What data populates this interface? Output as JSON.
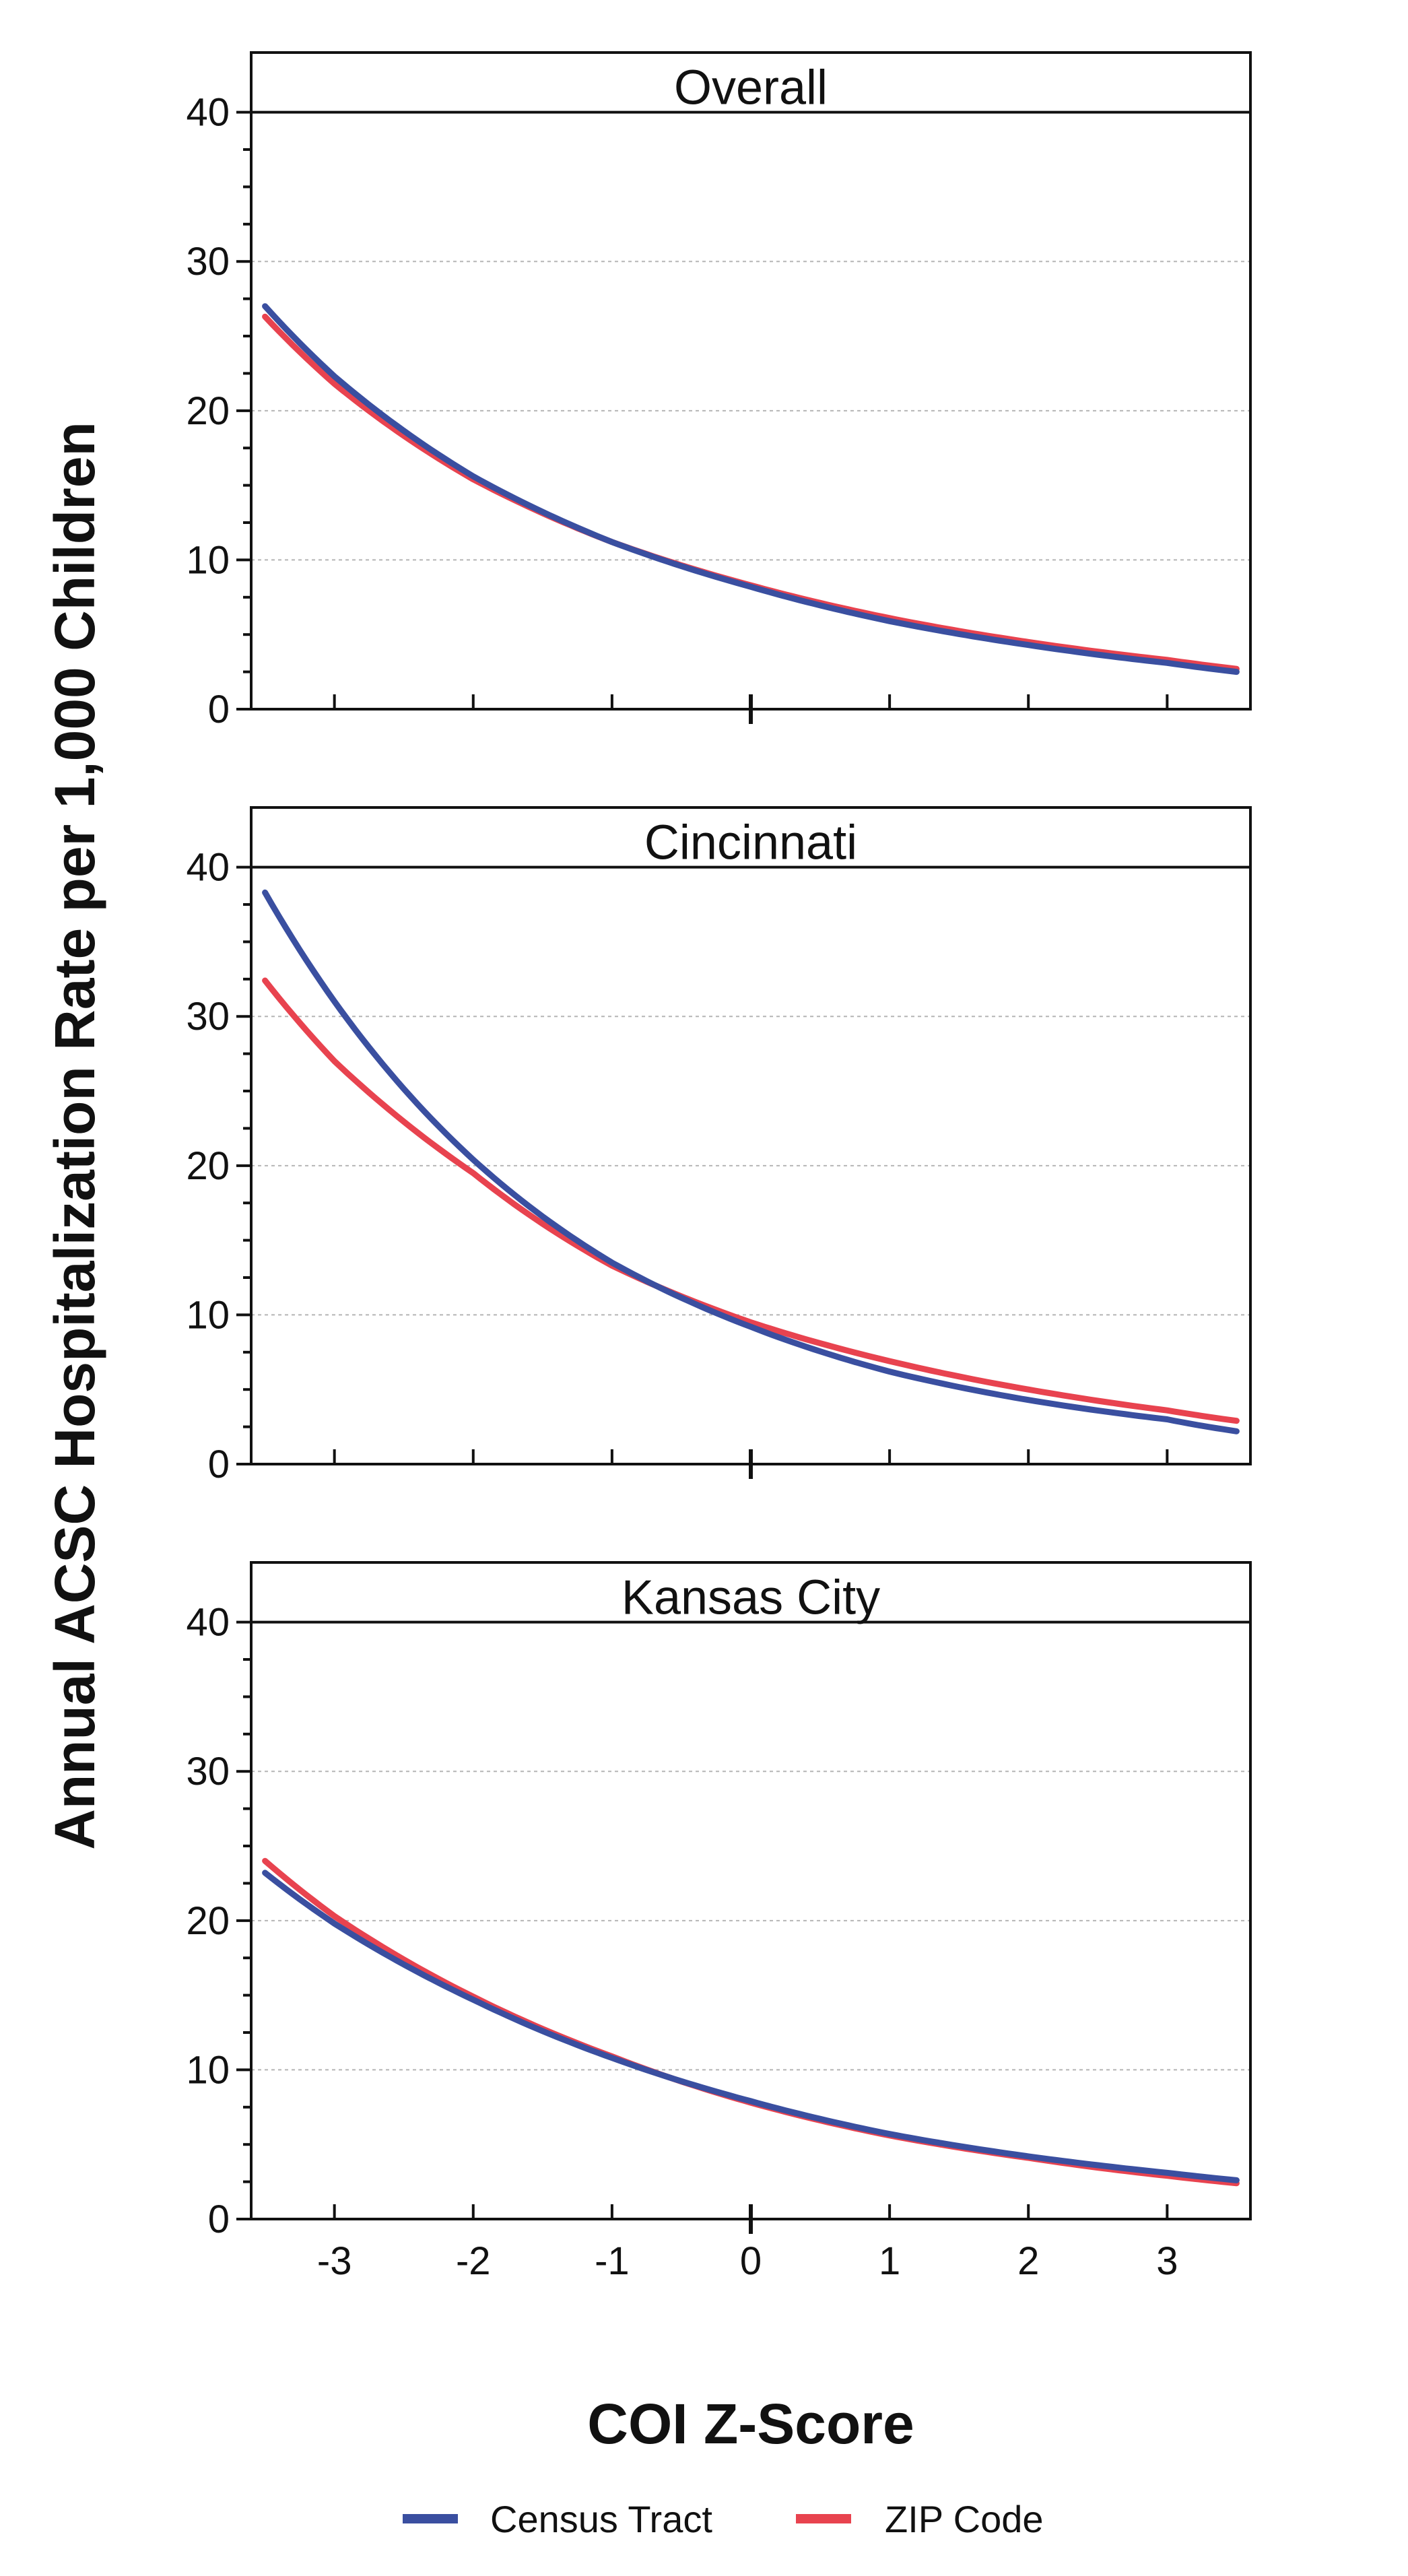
{
  "chart_data": {
    "type": "line",
    "ylabel": "Annual ACSC Hospitalization Rate per 1,000 Children",
    "xlabel": "COI Z-Score",
    "xlim": [
      -3.6,
      3.6
    ],
    "ylim": [
      0,
      44
    ],
    "x_ticks": [
      -3,
      -2,
      -1,
      0,
      1,
      2,
      3
    ],
    "x_tick_labels": [
      "-3",
      "-2",
      "-1",
      "0",
      "1",
      "2",
      "3"
    ],
    "y_ticks": [
      0,
      10,
      20,
      30,
      40
    ],
    "y_tick_labels": [
      "0",
      "10",
      "20",
      "30",
      "40"
    ],
    "grid": "horizontal dashed at 10, 20, 30",
    "legend_position": "bottom",
    "legend": [
      {
        "name": "Census Tract",
        "color": "#3a4fa0"
      },
      {
        "name": "ZIP Code",
        "color": "#e8434f"
      }
    ],
    "panels": [
      {
        "title": "Overall",
        "series": [
          {
            "name": "Census Tract",
            "color": "#3a4fa0",
            "x": [
              -3.5,
              -3,
              -2,
              -1,
              0,
              1,
              2,
              3,
              3.5
            ],
            "y": [
              27.0,
              22.3,
              15.6,
              11.2,
              8.2,
              5.9,
              4.3,
              3.1,
              2.5
            ]
          },
          {
            "name": "ZIP Code",
            "color": "#e8434f",
            "x": [
              -3.5,
              -3,
              -2,
              -1,
              0,
              1,
              2,
              3,
              3.5
            ],
            "y": [
              26.3,
              21.8,
              15.4,
              11.2,
              8.3,
              6.1,
              4.5,
              3.3,
              2.7
            ]
          }
        ]
      },
      {
        "title": "Cincinnati",
        "series": [
          {
            "name": "Census Tract",
            "color": "#3a4fa0",
            "x": [
              -3.5,
              -3,
              -2,
              -1,
              0,
              1,
              2,
              3,
              3.5
            ],
            "y": [
              38.3,
              31.0,
              20.4,
              13.5,
              9.2,
              6.2,
              4.3,
              3.0,
              2.2
            ]
          },
          {
            "name": "ZIP Code",
            "color": "#e8434f",
            "x": [
              -3.5,
              -3,
              -2,
              -1,
              0,
              1,
              2,
              3,
              3.5
            ],
            "y": [
              32.4,
              27.0,
              19.5,
              13.3,
              9.5,
              6.9,
              5.0,
              3.6,
              2.9
            ]
          }
        ]
      },
      {
        "title": "Kansas City",
        "series": [
          {
            "name": "Census Tract",
            "color": "#3a4fa0",
            "x": [
              -3.5,
              -3,
              -2,
              -1,
              0,
              1,
              2,
              3,
              3.5
            ],
            "y": [
              23.2,
              19.8,
              14.7,
              10.8,
              7.9,
              5.7,
              4.2,
              3.1,
              2.6
            ]
          },
          {
            "name": "ZIP Code",
            "color": "#e8434f",
            "x": [
              -3.5,
              -3,
              -2,
              -1,
              0,
              1,
              2,
              3,
              3.5
            ],
            "y": [
              24.0,
              20.3,
              14.9,
              10.9,
              7.8,
              5.6,
              4.1,
              2.9,
              2.4
            ]
          }
        ]
      }
    ]
  }
}
